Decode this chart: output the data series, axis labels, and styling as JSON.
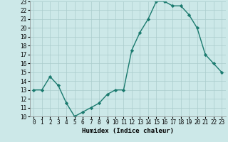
{
  "x": [
    0,
    1,
    2,
    3,
    4,
    5,
    6,
    7,
    8,
    9,
    10,
    11,
    12,
    13,
    14,
    15,
    16,
    17,
    18,
    19,
    20,
    21,
    22,
    23
  ],
  "y": [
    13,
    13,
    14.5,
    13.5,
    11.5,
    10,
    10.5,
    11,
    11.5,
    12.5,
    13,
    13,
    17.5,
    19.5,
    21,
    23,
    23,
    22.5,
    22.5,
    21.5,
    20,
    17,
    16,
    15
  ],
  "line_color": "#1a7a6e",
  "marker_color": "#1a7a6e",
  "bg_color": "#cce8e8",
  "grid_color": "#aacccc",
  "xlabel": "Humidex (Indice chaleur)",
  "ylim": [
    10,
    23
  ],
  "xlim": [
    -0.5,
    23.5
  ],
  "yticks": [
    10,
    11,
    12,
    13,
    14,
    15,
    16,
    17,
    18,
    19,
    20,
    21,
    22,
    23
  ],
  "xticks": [
    0,
    1,
    2,
    3,
    4,
    5,
    6,
    7,
    8,
    9,
    10,
    11,
    12,
    13,
    14,
    15,
    16,
    17,
    18,
    19,
    20,
    21,
    22,
    23
  ],
  "tick_fontsize": 5.5,
  "xlabel_fontsize": 6.5,
  "linewidth": 1.0,
  "markersize": 2.2
}
